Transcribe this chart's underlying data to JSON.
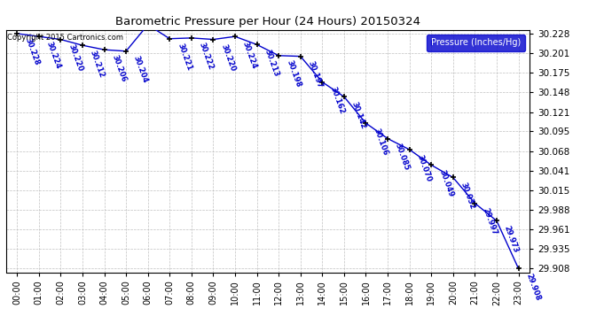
{
  "title": "Barometric Pressure per Hour (24 Hours) 20150324",
  "ylabel": "Pressure (Inches/Hg)",
  "copyright": "Copyright 2015 Cartronics.com",
  "hours": [
    0,
    1,
    2,
    3,
    4,
    5,
    6,
    7,
    8,
    9,
    10,
    11,
    12,
    13,
    14,
    15,
    16,
    17,
    18,
    19,
    20,
    21,
    22,
    23
  ],
  "hour_labels": [
    "00:00",
    "01:00",
    "02:00",
    "03:00",
    "04:00",
    "05:00",
    "06:00",
    "07:00",
    "08:00",
    "09:00",
    "10:00",
    "11:00",
    "12:00",
    "13:00",
    "14:00",
    "15:00",
    "16:00",
    "17:00",
    "18:00",
    "19:00",
    "20:00",
    "21:00",
    "22:00",
    "23:00"
  ],
  "pressure": [
    30.228,
    30.224,
    30.22,
    30.212,
    30.206,
    30.204,
    30.24,
    30.221,
    30.222,
    30.22,
    30.224,
    30.213,
    30.198,
    30.197,
    30.162,
    30.142,
    30.106,
    30.085,
    30.07,
    30.049,
    30.032,
    29.997,
    29.973,
    29.908
  ],
  "ylim_min": 29.908,
  "ylim_max": 30.228,
  "yticks": [
    29.908,
    29.935,
    29.961,
    29.988,
    30.015,
    30.041,
    30.068,
    30.095,
    30.121,
    30.148,
    30.175,
    30.201,
    30.228
  ],
  "line_color": "#0000cc",
  "marker_color": "#000000",
  "grid_color": "#c0c0c0",
  "bg_color": "#ffffff",
  "legend_bg": "#0000cc",
  "legend_text_color": "#ffffff",
  "title_color": "#000000",
  "label_color": "#0000cc",
  "copyright_color": "#000000",
  "figwidth": 6.9,
  "figheight": 3.75,
  "dpi": 100
}
